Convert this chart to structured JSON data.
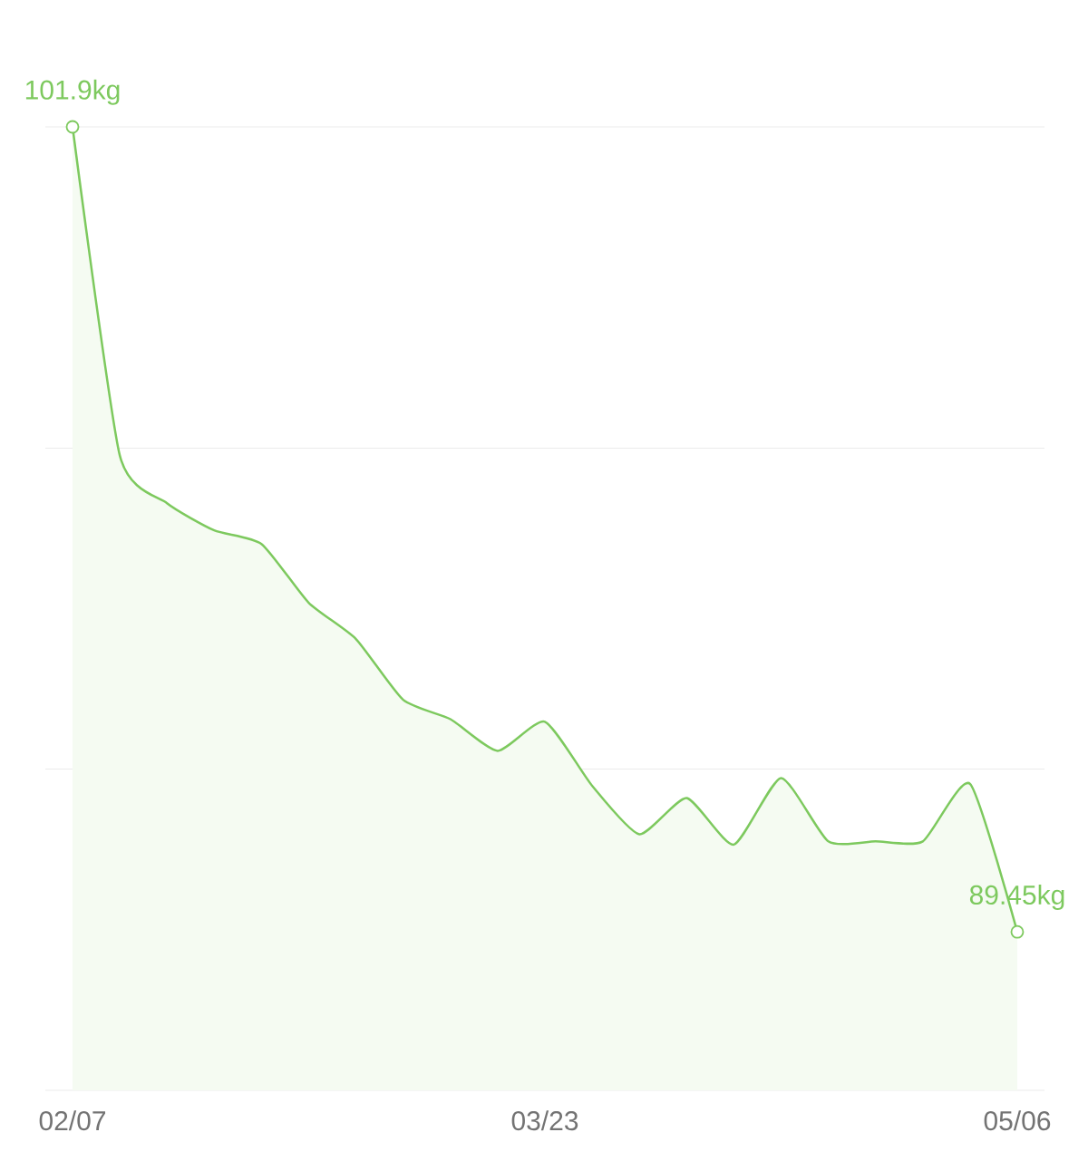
{
  "chart_data": {
    "type": "area",
    "categories": [
      "02/07",
      null,
      null,
      null,
      null,
      null,
      null,
      null,
      null,
      null,
      "03/23",
      null,
      null,
      null,
      null,
      null,
      null,
      null,
      null,
      null,
      "05/06"
    ],
    "values": [
      101.9,
      96.82,
      96.08,
      95.66,
      95.45,
      94.54,
      93.98,
      93.04,
      92.74,
      92.25,
      92.7,
      91.71,
      90.96,
      91.52,
      90.8,
      91.83,
      90.85,
      90.85,
      90.85,
      91.74,
      89.45
    ],
    "value_labels": [
      "101.9kg",
      null,
      null,
      null,
      null,
      null,
      null,
      null,
      null,
      null,
      null,
      null,
      null,
      null,
      null,
      null,
      null,
      null,
      null,
      null,
      "89.45kg"
    ],
    "color": "#7dc95e",
    "ylim": [
      87,
      101.9
    ],
    "yticks": [
      {
        "value": 87,
        "label": null
      },
      {
        "value": 91.97,
        "label": null
      },
      {
        "value": 96.93,
        "label": null
      },
      {
        "value": 101.9,
        "label": null
      }
    ],
    "grid": "y",
    "tick_labels": "x"
  }
}
